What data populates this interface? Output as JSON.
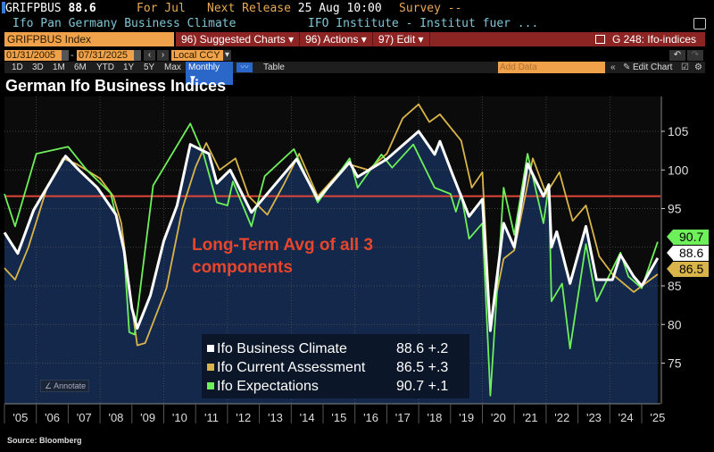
{
  "header": {
    "ticker": "GRIFPBUS",
    "last_value": "88.6",
    "period": "For Jul",
    "next_release_label": "Next Release",
    "next_release_date": "25 Aug 10:00",
    "survey": "Survey --",
    "description": "Ifo Pan Germany Business Climate",
    "source_org": "IFO Institute - Institut fuer ..."
  },
  "toolbar": {
    "security_field": "GRIFPBUS Index",
    "suggested_charts": "96) Suggested Charts ▾",
    "actions": "96) Actions ▾",
    "edit": "97) Edit ▾",
    "chart_id": "G 248: Ifo-indices"
  },
  "range": {
    "start_date": "01/31/2005",
    "end_date": "07/31/2025",
    "currency": "Local CCY",
    "periods": [
      "1D",
      "3D",
      "1M",
      "6M",
      "YTD",
      "1Y",
      "5Y",
      "Max"
    ],
    "frequency": "Monthly ▼",
    "table_label": "Table",
    "add_data_placeholder": "Add Data",
    "edit_chart": "Edit Chart"
  },
  "annotate_label": "Annotate",
  "source": "Source: Bloomberg",
  "chart_data": {
    "type": "line",
    "title": "German Ifo Business Indices",
    "annotation": "Long-Term Avg of all 3 components",
    "reference_line": {
      "value": 96.6,
      "color": "#e0463a"
    },
    "ylim": [
      70,
      109.5
    ],
    "y_ticks": [
      75,
      80,
      85,
      95,
      100,
      105
    ],
    "x_tick_labels": [
      "'05",
      "'06",
      "'07",
      "'08",
      "'09",
      "'10",
      "'11",
      "'12",
      "'13",
      "'14",
      "'15",
      "'16",
      "'17",
      "'18",
      "'19",
      "'20",
      "'21",
      "'22",
      "'23",
      "'24",
      "'25"
    ],
    "xlim": [
      "2005-01",
      "2025-07"
    ],
    "grid": true,
    "legend_position": "bottom-center",
    "series": [
      {
        "name": "Ifo Business Climate",
        "color": "#ffffff",
        "last": "88.6",
        "change": "+.2",
        "filled": true,
        "points": [
          [
            "2005-01",
            91.9
          ],
          [
            "2005-06",
            89.2
          ],
          [
            "2005-12",
            94.8
          ],
          [
            "2006-07",
            98.9
          ],
          [
            "2006-12",
            101.8
          ],
          [
            "2007-05",
            100.0
          ],
          [
            "2007-12",
            97.7
          ],
          [
            "2008-07",
            94.2
          ],
          [
            "2008-10",
            89.6
          ],
          [
            "2009-01",
            82.1
          ],
          [
            "2009-03",
            79.5
          ],
          [
            "2009-08",
            83.8
          ],
          [
            "2010-01",
            90.8
          ],
          [
            "2010-06",
            95.4
          ],
          [
            "2010-11",
            103.3
          ],
          [
            "2011-06",
            102.1
          ],
          [
            "2011-09",
            98.3
          ],
          [
            "2012-02",
            100.0
          ],
          [
            "2012-10",
            94.5
          ],
          [
            "2014-03",
            101.4
          ],
          [
            "2014-11",
            96.2
          ],
          [
            "2015-11",
            101.0
          ],
          [
            "2016-02",
            99.1
          ],
          [
            "2017-01",
            101.4
          ],
          [
            "2018-01",
            105.0
          ],
          [
            "2018-07",
            102.0
          ],
          [
            "2018-09",
            103.7
          ],
          [
            "2019-02",
            99.2
          ],
          [
            "2019-08",
            94.0
          ],
          [
            "2020-01",
            96.2
          ],
          [
            "2020-04",
            79.2
          ],
          [
            "2020-09",
            93.1
          ],
          [
            "2021-01",
            90.0
          ],
          [
            "2021-06",
            100.8
          ],
          [
            "2021-12",
            96.6
          ],
          [
            "2022-02",
            98.1
          ],
          [
            "2022-03",
            90.0
          ],
          [
            "2022-05",
            92.0
          ],
          [
            "2022-10",
            85.3
          ],
          [
            "2023-04",
            92.7
          ],
          [
            "2023-08",
            85.8
          ],
          [
            "2024-02",
            85.8
          ],
          [
            "2024-05",
            89.0
          ],
          [
            "2024-10",
            86.2
          ],
          [
            "2025-01",
            85.0
          ],
          [
            "2025-07",
            88.6
          ]
        ]
      },
      {
        "name": "Ifo Current Assessment",
        "color": "#d9b44a",
        "last": "86.5",
        "change": "+.3",
        "points": [
          [
            "2005-01",
            87.3
          ],
          [
            "2005-05",
            85.8
          ],
          [
            "2005-10",
            90.0
          ],
          [
            "2006-05",
            97.7
          ],
          [
            "2006-11",
            101.5
          ],
          [
            "2007-04",
            100.8
          ],
          [
            "2008-01",
            98.9
          ],
          [
            "2008-06",
            96.6
          ],
          [
            "2008-09",
            93.1
          ],
          [
            "2009-01",
            82.3
          ],
          [
            "2009-03",
            77.3
          ],
          [
            "2009-06",
            77.6
          ],
          [
            "2010-02",
            84.7
          ],
          [
            "2010-08",
            95.0
          ],
          [
            "2011-01",
            100.4
          ],
          [
            "2011-05",
            103.5
          ],
          [
            "2011-10",
            100.0
          ],
          [
            "2012-04",
            101.5
          ],
          [
            "2012-09",
            96.6
          ],
          [
            "2013-04",
            94.2
          ],
          [
            "2013-10",
            98.0
          ],
          [
            "2014-04",
            102.1
          ],
          [
            "2014-11",
            96.6
          ],
          [
            "2015-10",
            100.8
          ],
          [
            "2016-06",
            100.0
          ],
          [
            "2017-01",
            102.1
          ],
          [
            "2017-07",
            106.7
          ],
          [
            "2018-01",
            108.5
          ],
          [
            "2018-05",
            106.2
          ],
          [
            "2018-09",
            107.2
          ],
          [
            "2019-05",
            103.8
          ],
          [
            "2019-09",
            97.7
          ],
          [
            "2020-01",
            99.7
          ],
          [
            "2020-04",
            80.0
          ],
          [
            "2020-09",
            88.5
          ],
          [
            "2021-01",
            89.6
          ],
          [
            "2021-08",
            101.5
          ],
          [
            "2022-01",
            96.9
          ],
          [
            "2022-06",
            99.7
          ],
          [
            "2022-11",
            93.4
          ],
          [
            "2023-04",
            95.4
          ],
          [
            "2023-09",
            88.8
          ],
          [
            "2024-02",
            86.5
          ],
          [
            "2024-10",
            84.2
          ],
          [
            "2025-07",
            86.5
          ]
        ]
      },
      {
        "name": "Ifo Expectations",
        "color": "#6ef05a",
        "last": "90.7",
        "change": "+.1",
        "points": [
          [
            "2005-01",
            96.9
          ],
          [
            "2005-05",
            92.7
          ],
          [
            "2006-01",
            102.1
          ],
          [
            "2007-01",
            103.0
          ],
          [
            "2007-08",
            100.0
          ],
          [
            "2008-05",
            97.0
          ],
          [
            "2008-10",
            89.6
          ],
          [
            "2008-12",
            79.0
          ],
          [
            "2009-02",
            78.7
          ],
          [
            "2009-09",
            98.0
          ],
          [
            "2010-11",
            106.0
          ],
          [
            "2011-04",
            102.0
          ],
          [
            "2011-09",
            95.8
          ],
          [
            "2012-01",
            95.4
          ],
          [
            "2012-03",
            98.5
          ],
          [
            "2012-10",
            92.7
          ],
          [
            "2013-03",
            99.2
          ],
          [
            "2014-02",
            102.7
          ],
          [
            "2014-11",
            95.8
          ],
          [
            "2015-11",
            101.5
          ],
          [
            "2016-02",
            97.7
          ],
          [
            "2016-11",
            102.0
          ],
          [
            "2017-03",
            100.3
          ],
          [
            "2017-11",
            103.3
          ],
          [
            "2018-07",
            97.7
          ],
          [
            "2019-01",
            96.9
          ],
          [
            "2019-03",
            94.6
          ],
          [
            "2019-05",
            96.9
          ],
          [
            "2019-08",
            91.1
          ],
          [
            "2020-01",
            93.1
          ],
          [
            "2020-04",
            70.8
          ],
          [
            "2020-09",
            97.7
          ],
          [
            "2021-01",
            91.6
          ],
          [
            "2021-06",
            102.1
          ],
          [
            "2021-12",
            93.1
          ],
          [
            "2022-02",
            98.0
          ],
          [
            "2022-03",
            83.0
          ],
          [
            "2022-07",
            85.3
          ],
          [
            "2022-10",
            76.9
          ],
          [
            "2023-04",
            90.4
          ],
          [
            "2023-08",
            83.0
          ],
          [
            "2024-05",
            89.3
          ],
          [
            "2024-08",
            86.2
          ],
          [
            "2025-01",
            84.7
          ],
          [
            "2025-07",
            90.7
          ]
        ]
      }
    ]
  }
}
